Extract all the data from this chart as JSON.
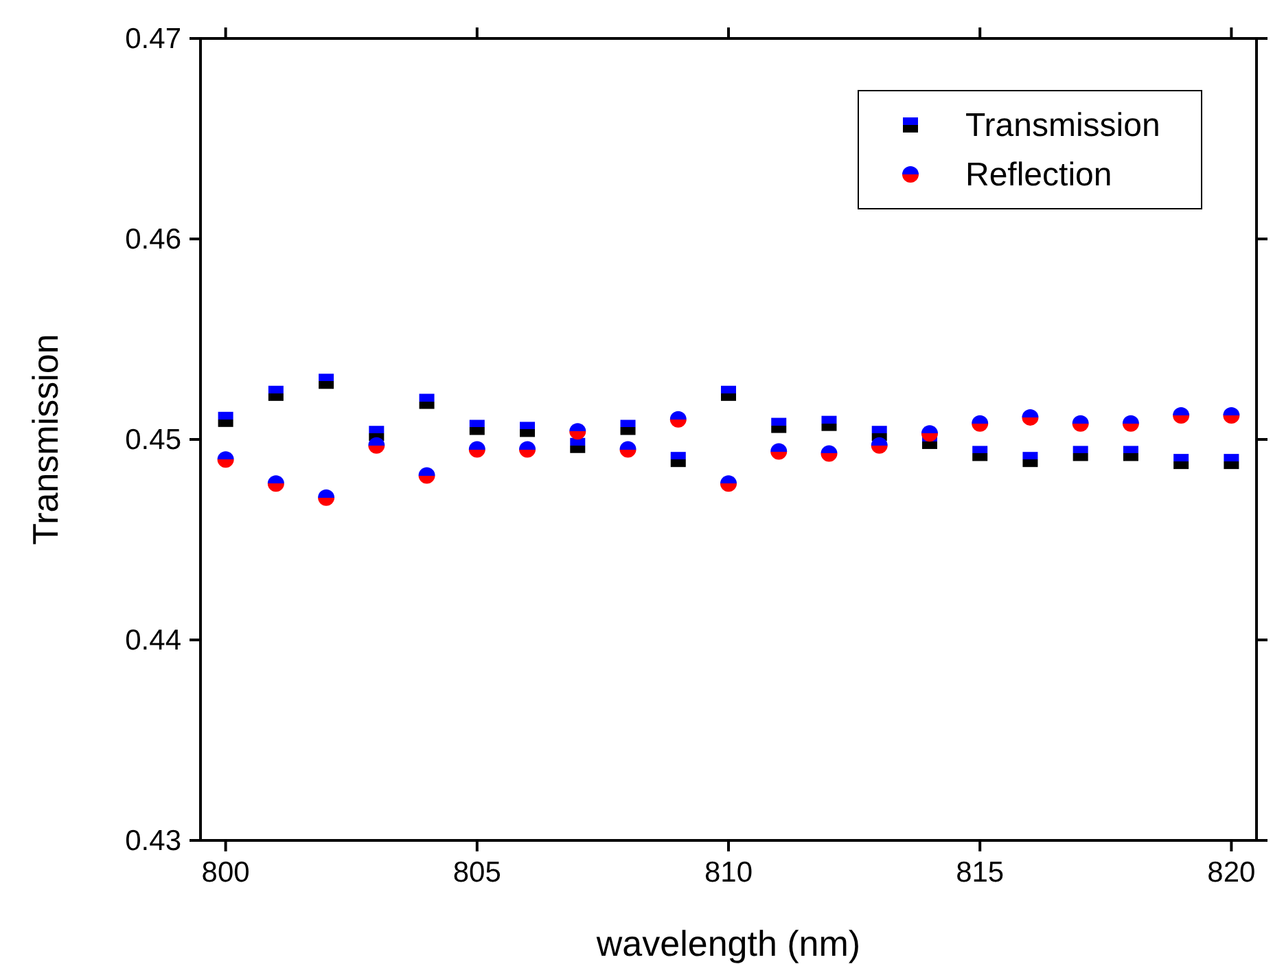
{
  "chart_data": {
    "type": "scatter",
    "xlabel": "wavelength (nm)",
    "ylabel": "Transmission",
    "x": [
      800,
      801,
      802,
      803,
      804,
      805,
      806,
      807,
      808,
      809,
      810,
      811,
      812,
      813,
      814,
      815,
      816,
      817,
      818,
      819,
      820
    ],
    "series": [
      {
        "name": "Transmission",
        "color": "#000000",
        "marker": "square",
        "values": [
          0.451,
          0.4523,
          0.4529,
          0.4503,
          0.4519,
          0.4506,
          0.4505,
          0.4497,
          0.4506,
          0.449,
          0.4523,
          0.4507,
          0.4508,
          0.4503,
          0.4499,
          0.4493,
          0.449,
          0.4493,
          0.4493,
          0.4489,
          0.4489
        ]
      },
      {
        "name": "Reflection",
        "color": "#ff0000",
        "marker": "circle",
        "values": [
          0.449,
          0.4478,
          0.4471,
          0.4497,
          0.4482,
          0.4495,
          0.4495,
          0.4504,
          0.4495,
          0.451,
          0.4478,
          0.4494,
          0.4493,
          0.4497,
          0.4503,
          0.4508,
          0.4511,
          0.4508,
          0.4508,
          0.4512,
          0.4512
        ]
      }
    ],
    "xlim": [
      799.5,
      820.5
    ],
    "xticks": [
      800,
      805,
      810,
      815,
      820
    ],
    "ylim": [
      0.43,
      0.47
    ],
    "yticks": [
      {
        "value": 0.43,
        "label": "0.43"
      },
      {
        "value": 0.44,
        "label": "0.44"
      },
      {
        "value": 0.45,
        "label": "0.45"
      },
      {
        "value": 0.46,
        "label": "0.46"
      },
      {
        "value": 0.47,
        "label": "0.47"
      }
    ],
    "grid": false,
    "legend": "top right"
  }
}
